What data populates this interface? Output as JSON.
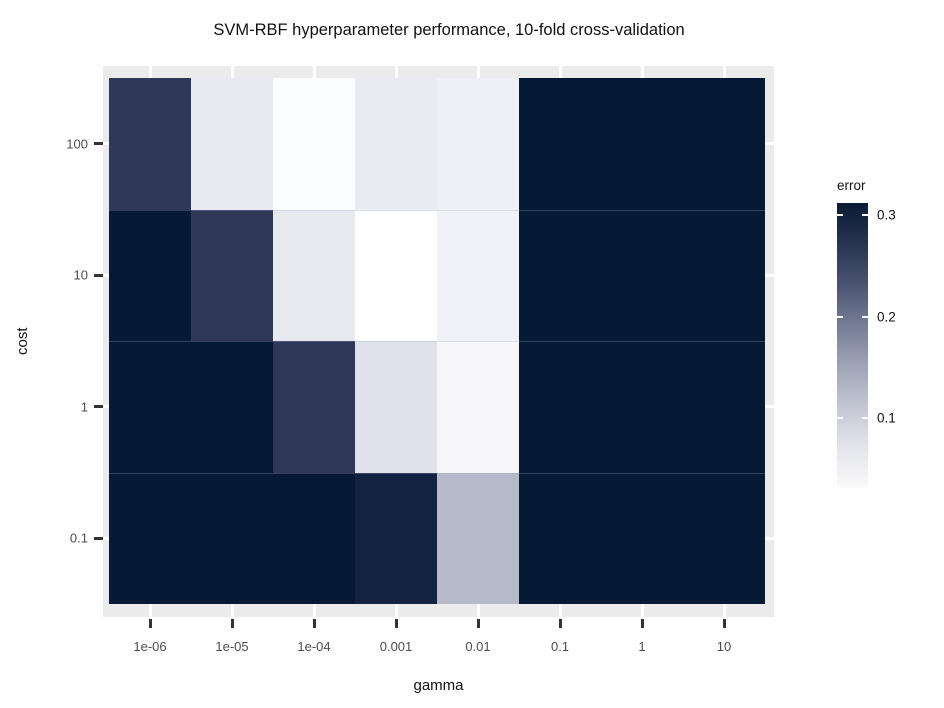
{
  "title": "SVM-RBF hyperparameter performance, 10-fold cross-validation",
  "chart_data": {
    "type": "heatmap",
    "title": "SVM-RBF hyperparameter performance, 10-fold cross-validation",
    "xlabel": "gamma",
    "ylabel": "cost",
    "x_scale": "log10",
    "y_scale": "log10",
    "x_categories": [
      "1e-06",
      "1e-05",
      "1e-04",
      "0.001",
      "0.01",
      "0.1",
      "1",
      "10"
    ],
    "y_categories_top_to_bottom": [
      "100",
      "10",
      "1",
      "0.1"
    ],
    "panel_background": "#EBEBEB",
    "gridline_color": "#FFFFFF",
    "legend": {
      "title": "error",
      "position": "right",
      "tick_labels": [
        "0.3",
        "0.2",
        "0.1"
      ],
      "tick_values": [
        0.3,
        0.2,
        0.1
      ],
      "domain_min": 0.031,
      "domain_max": 0.312,
      "gradient_stops_top_to_bottom": [
        "#0A1C34",
        "#28334F",
        "#4A5470",
        "#757D96",
        "#9EA4B7",
        "#C3C7D3",
        "#E4E5EB",
        "#FAFAFB"
      ]
    },
    "rows": [
      {
        "cost": "100",
        "errors": [
          0.265,
          0.059,
          0.04,
          0.058,
          0.053,
          0.31,
          0.31,
          0.31
        ],
        "colors": [
          "#303857",
          "#E9EAEF",
          "#FBFDFE",
          "#EAEBF0",
          "#EFF0F5",
          "#061A35",
          "#061A35",
          "#061A35"
        ]
      },
      {
        "cost": "10",
        "errors": [
          0.31,
          0.264,
          0.06,
          0.035,
          0.053,
          0.31,
          0.31,
          0.31
        ],
        "colors": [
          "#051A35",
          "#303858",
          "#E8E9EF",
          "#FFFFFF",
          "#EFF1F6",
          "#061A35",
          "#061A35",
          "#061A35"
        ]
      },
      {
        "cost": "1",
        "errors": [
          0.31,
          0.31,
          0.266,
          0.069,
          0.045,
          0.31,
          0.31,
          0.31
        ],
        "colors": [
          "#061A35",
          "#061A35",
          "#2E3757",
          "#E0E1EA",
          "#F6F6F9",
          "#061A35",
          "#061A35",
          "#061A35"
        ]
      },
      {
        "cost": "0.1",
        "errors": [
          0.31,
          0.31,
          0.31,
          0.295,
          0.116,
          0.31,
          0.31,
          0.31
        ],
        "colors": [
          "#061A35",
          "#061A35",
          "#051834",
          "#142241",
          "#B6B9C7",
          "#061A35",
          "#061A35",
          "#061A35"
        ]
      }
    ]
  }
}
